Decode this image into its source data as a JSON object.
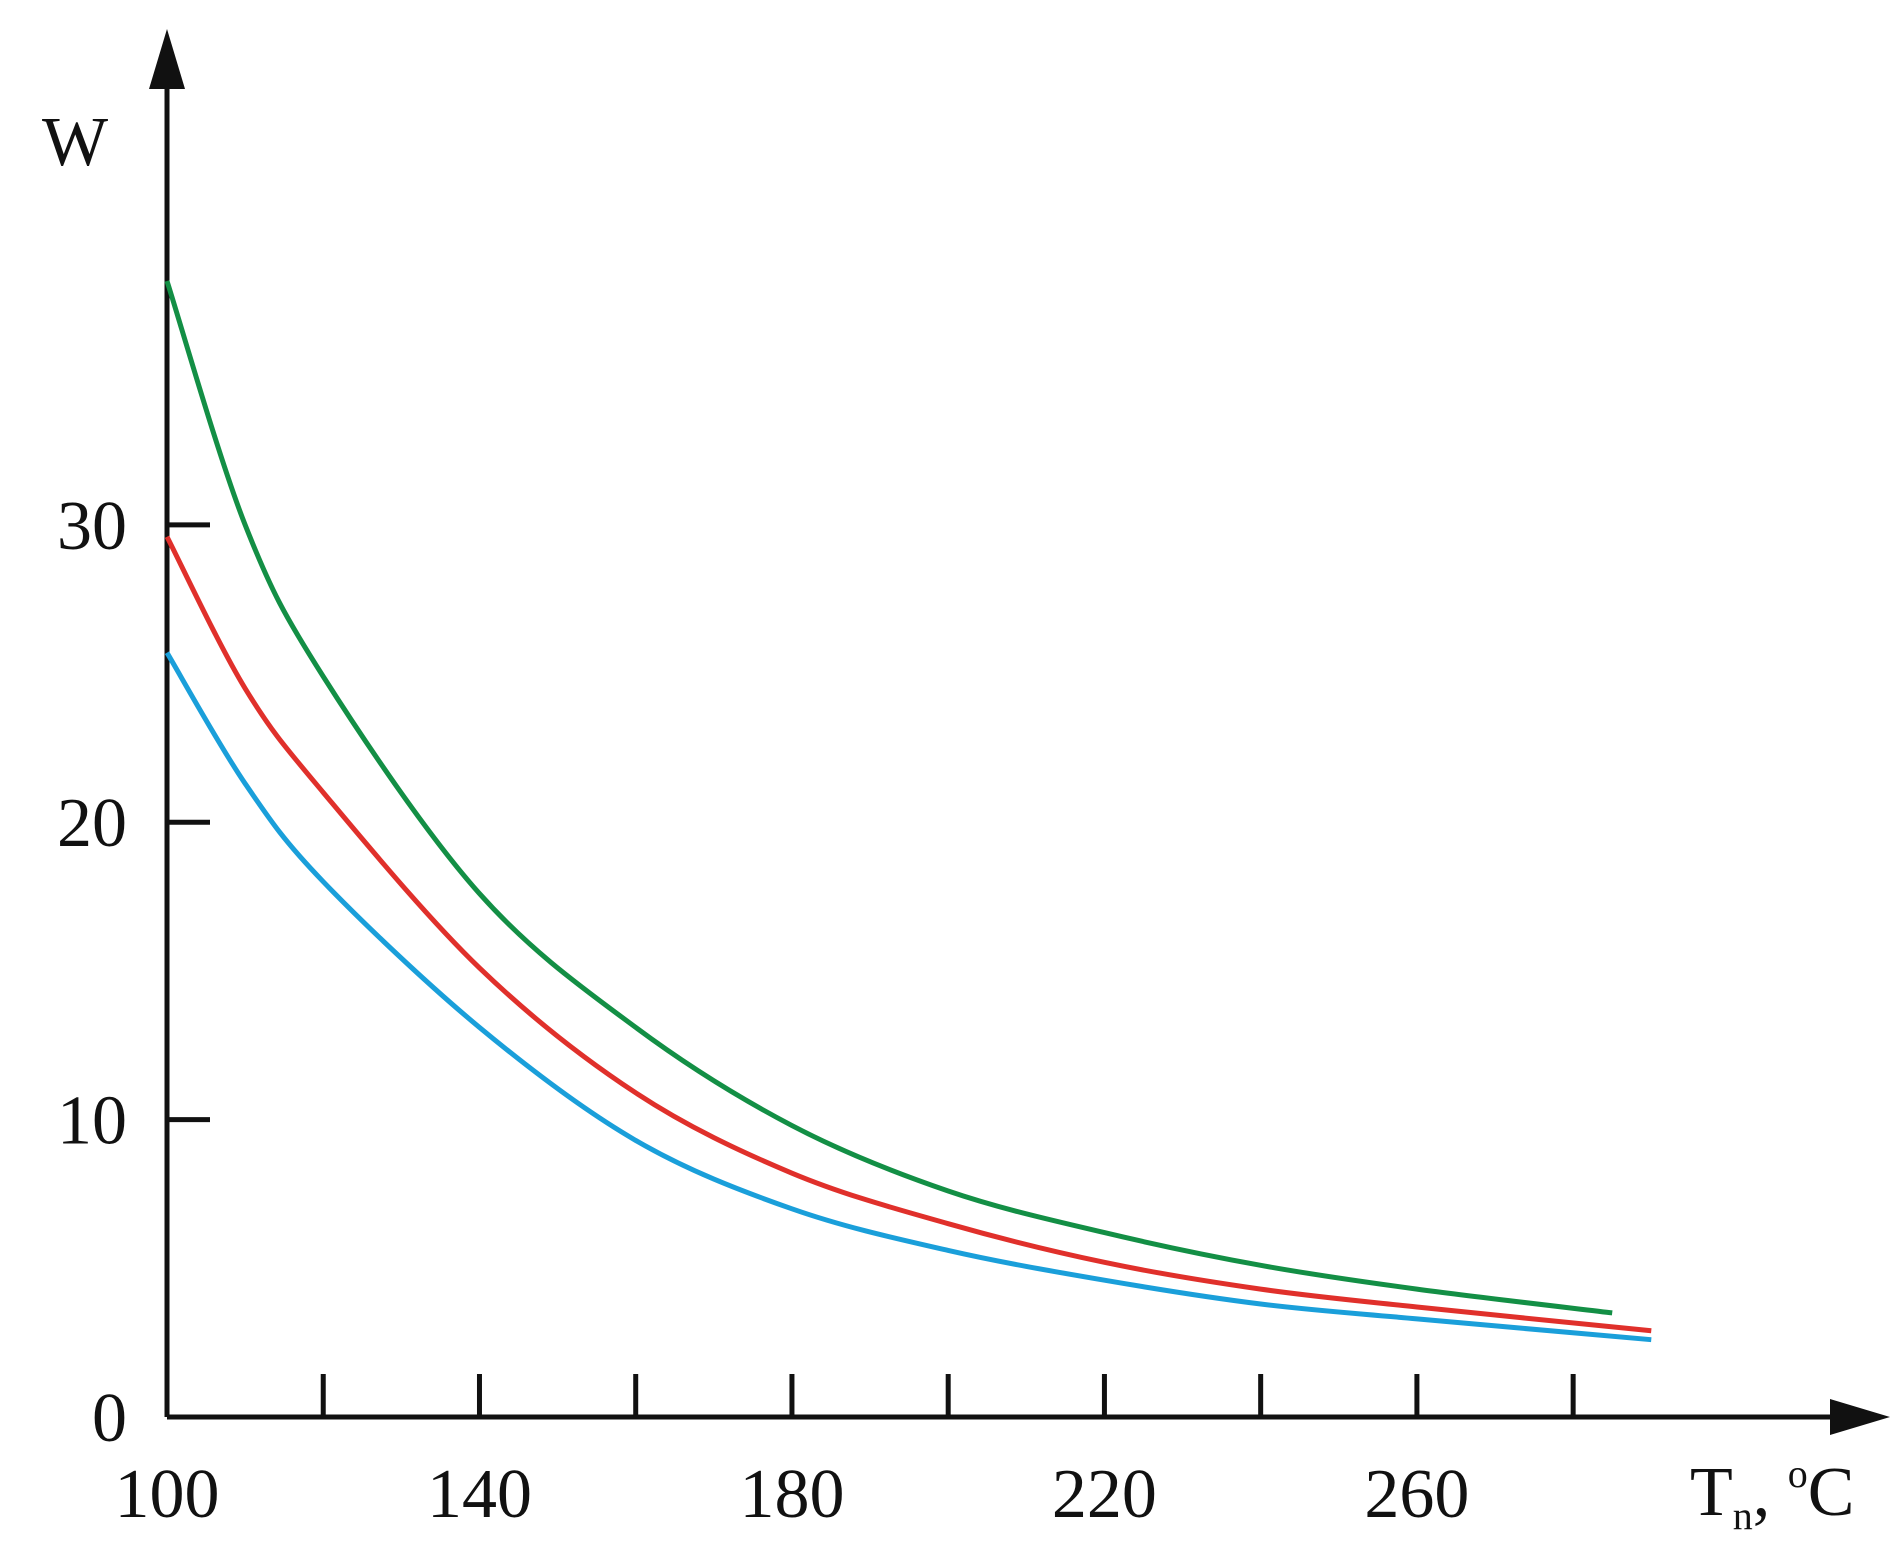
{
  "chart_data": {
    "type": "line",
    "ylabel": "W",
    "xlabel": {
      "main": "T",
      "sub": "n",
      "mid": ", ",
      "sup": "o",
      "unit": "C"
    },
    "x": [
      100,
      110,
      120,
      140,
      160,
      180,
      200,
      220,
      240,
      260,
      285
    ],
    "series": [
      {
        "color": "#138f45",
        "values": [
          38.2,
          30.0,
          24.9,
          17.6,
          13.1,
          9.8,
          7.6,
          6.2,
          5.1,
          4.3,
          3.5
        ]
      },
      {
        "color": "#e0302b",
        "values": [
          29.6,
          24.5,
          21.0,
          15.1,
          10.9,
          8.2,
          6.5,
          5.2,
          4.3,
          3.7,
          2.9
        ]
      },
      {
        "color": "#1a9fda",
        "values": [
          25.7,
          21.3,
          18.0,
          13.1,
          9.3,
          7.0,
          5.6,
          4.6,
          3.8,
          3.3,
          2.6
        ]
      }
    ],
    "x_end": [
      285,
      290,
      290
    ],
    "xlim": [
      100,
      318
    ],
    "ylim": [
      0,
      46
    ],
    "xticks": [
      100,
      140,
      180,
      220,
      260
    ],
    "xminor": [
      120,
      160,
      200,
      240,
      280
    ],
    "yticks": [
      0,
      10,
      20,
      30
    ]
  }
}
